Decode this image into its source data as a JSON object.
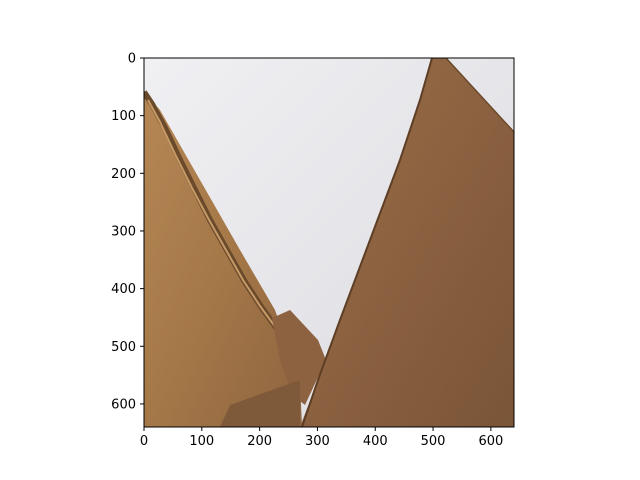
{
  "image": {
    "subject": "cardboard box flaps against a white background",
    "colors": {
      "background": "#e6e6ea",
      "cardboard_light": "#a87c4e",
      "cardboard_dark": "#7d5636",
      "cardboard_edge": "#5e3e24"
    }
  },
  "axes": {
    "x_ticks": [
      "0",
      "100",
      "200",
      "300",
      "400",
      "500",
      "600"
    ],
    "y_ticks": [
      "0",
      "100",
      "200",
      "300",
      "400",
      "500",
      "600"
    ],
    "xlim": [
      0,
      640
    ],
    "ylim": [
      640,
      0
    ]
  }
}
